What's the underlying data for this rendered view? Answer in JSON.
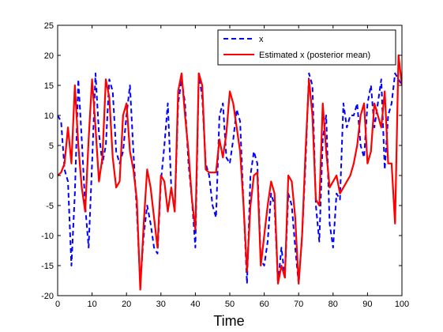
{
  "chart_data": {
    "type": "line",
    "title": "",
    "xlabel": "Time",
    "ylabel": "",
    "xlim": [
      0,
      100
    ],
    "ylim": [
      -20,
      25
    ],
    "xticks": [
      0,
      10,
      20,
      30,
      40,
      50,
      60,
      70,
      80,
      90,
      100
    ],
    "yticks": [
      -20,
      -15,
      -10,
      -5,
      0,
      5,
      10,
      15,
      20,
      25
    ],
    "grid": false,
    "legend_position": "top-right",
    "x": [
      0,
      1,
      2,
      3,
      4,
      5,
      6,
      7,
      8,
      9,
      10,
      11,
      12,
      13,
      14,
      15,
      16,
      17,
      18,
      19,
      20,
      21,
      22,
      23,
      24,
      25,
      26,
      27,
      28,
      29,
      30,
      31,
      32,
      33,
      34,
      35,
      36,
      37,
      38,
      39,
      40,
      41,
      42,
      43,
      44,
      45,
      46,
      47,
      48,
      49,
      50,
      51,
      52,
      53,
      54,
      55,
      56,
      57,
      58,
      59,
      60,
      61,
      62,
      63,
      64,
      65,
      66,
      67,
      68,
      69,
      70,
      71,
      72,
      73,
      74,
      75,
      76,
      77,
      78,
      79,
      80,
      81,
      82,
      83,
      84,
      85,
      86,
      87,
      88,
      89,
      90,
      91,
      92,
      93,
      94,
      95,
      96,
      97,
      98,
      99,
      100
    ],
    "series": [
      {
        "name": "x",
        "style": "dashed",
        "color": "#0000ff",
        "values": [
          10,
          9,
          1,
          -1,
          -15,
          -3,
          16,
          6,
          -5,
          -12,
          2,
          17,
          7,
          2,
          5,
          16,
          14,
          4,
          2,
          4,
          10,
          15,
          4,
          -6,
          -18,
          -10,
          -5,
          -8,
          -12,
          -13,
          -1,
          5,
          12,
          -2,
          -6,
          12,
          16,
          12,
          2,
          -4,
          -12,
          17,
          13,
          2,
          0,
          -5,
          -7,
          10,
          12,
          3,
          2,
          6,
          11,
          9,
          -5,
          -18,
          0,
          4,
          2,
          -14,
          -15,
          -11,
          -3,
          -5,
          -18,
          -12,
          -17,
          -3,
          -5,
          -12,
          -18,
          -10,
          2,
          17,
          15,
          -5,
          -11,
          6,
          10,
          -8,
          -12,
          -3,
          -4,
          12,
          8,
          10,
          10,
          12,
          5,
          3,
          12,
          15,
          8,
          12,
          16,
          1,
          10,
          12,
          17,
          16,
          15
        ]
      },
      {
        "name": "Estimated x (posterior mean)",
        "style": "solid",
        "color": "#ff0000",
        "values": [
          0,
          0.5,
          2,
          8,
          2,
          15,
          5,
          -2,
          -6,
          6,
          16,
          8,
          -1,
          3,
          16,
          13,
          3,
          -2,
          -1,
          10,
          12,
          4,
          1,
          -4,
          -19,
          -8,
          1,
          -2,
          -7,
          -12,
          0,
          -1,
          -6,
          -2,
          -6,
          14,
          17,
          10,
          4,
          -4,
          -9,
          17,
          15,
          1,
          0.5,
          0.5,
          0.5,
          6,
          3,
          7,
          14,
          12,
          8,
          4,
          -5,
          -16,
          -5,
          0,
          0.5,
          -15,
          -10,
          -5,
          -1,
          -3,
          -18,
          -15,
          -17,
          0,
          -1,
          -7,
          -18,
          -10,
          4,
          16,
          10,
          -4,
          -5,
          12,
          4,
          -2,
          -1,
          0,
          -3,
          -2,
          -1,
          0,
          2,
          5,
          10,
          12,
          2,
          4,
          12,
          10,
          8,
          14,
          2,
          2,
          -8,
          20,
          15
        ]
      }
    ]
  }
}
